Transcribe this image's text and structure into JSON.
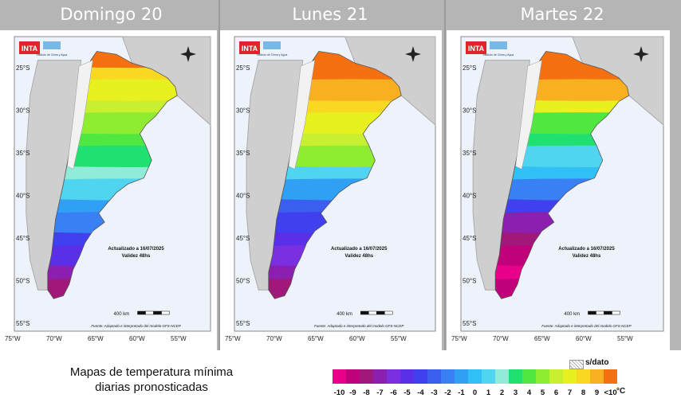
{
  "titles": [
    "Domingo 20",
    "Lunes 21",
    "Martes 22"
  ],
  "panel_text": {
    "inta_logo": "INTA",
    "institute": "Instituto de Clima y Agua",
    "updated": "Actualizado a 16/07/2025",
    "validity": "Validez 48hs",
    "scale": "400 km",
    "source": "Fuente: Adaptado e interpretado del modelo GFS-NCEP"
  },
  "lat_labels": [
    "25°S",
    "30°S",
    "35°S",
    "40°S",
    "45°S",
    "50°S",
    "55°S"
  ],
  "lon_labels": [
    "75°W",
    "70°W",
    "65°W",
    "60°W",
    "55°W"
  ],
  "caption": {
    "line1": "Mapas de temperatura mínima",
    "line2": "diarias pronosticadas"
  },
  "legend": {
    "no_data": "s/dato",
    "unit": "°C",
    "labels": [
      "-10",
      "-9",
      "-8",
      "-7",
      "-6",
      "-5",
      "-4",
      "-3",
      "-2",
      "-1",
      "0",
      "1",
      "2",
      "3",
      "4",
      "5",
      "6",
      "7",
      "8",
      "9",
      "<10"
    ],
    "colors": [
      "#e8008a",
      "#c0007a",
      "#a0187a",
      "#8a1fb0",
      "#7a2fe0",
      "#5a2fe8",
      "#4040ee",
      "#3a5ff0",
      "#3a80f5",
      "#30a0f5",
      "#30c0f5",
      "#50d5f0",
      "#90ecd8",
      "#20e070",
      "#50e840",
      "#90ec30",
      "#c8ef30",
      "#e8f020",
      "#f8d820",
      "#f8b020",
      "#f47010"
    ],
    "colors_note_unused": ""
  },
  "maps": [
    {
      "day": "Domingo 20"
    },
    {
      "day": "Lunes 21"
    },
    {
      "day": "Martes 22"
    }
  ]
}
